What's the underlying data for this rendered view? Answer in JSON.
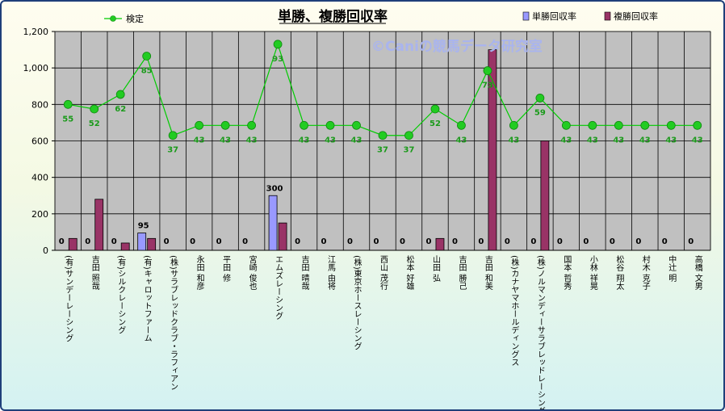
{
  "chart_data": {
    "type": "bar",
    "title": "単勝、複勝回収率",
    "watermark": "©Caniの競馬データ研究室",
    "ylim": [
      0,
      1200
    ],
    "yticks": [
      "0",
      "200",
      "400",
      "600",
      "800",
      "1,000",
      "1,200"
    ],
    "grid": true,
    "legend_placement": "top",
    "categories": [
      "(有)サンデーレーシング",
      "吉田 照哉",
      "(有)シルクレーシング",
      "(有)キャロットファーム",
      "(株)サラブレッドクラブ・ラフィアン",
      "永田 和彦",
      "平田 修",
      "宮崎 俊也",
      "エムズレーシング",
      "吉田 晴哉",
      "江馬 由将",
      "(株)東京ホースレーシング",
      "西山 茂行",
      "松本 好雄",
      "山田 弘",
      "吉田 勝己",
      "吉田 和美",
      "(株)カナヤマホールディングス",
      "(株)ノルマンディーサラブレッドレーシング",
      "国本 哲秀",
      "小林 祥晃",
      "松谷 翔太",
      "村木 克子",
      "中辻 明",
      "高橋 文男"
    ],
    "series": [
      {
        "name": "単勝回収率",
        "type": "bar",
        "color": "#9999ff",
        "values": [
          0,
          0,
          0,
          95,
          0,
          0,
          0,
          0,
          300,
          0,
          0,
          0,
          0,
          0,
          0,
          0,
          0,
          0,
          0,
          0,
          0,
          0,
          0,
          0,
          0
        ]
      },
      {
        "name": "複勝回収率",
        "type": "bar",
        "color": "#993366",
        "values": [
          65,
          280,
          40,
          65,
          0,
          0,
          0,
          0,
          150,
          0,
          0,
          0,
          0,
          0,
          65,
          0,
          1100,
          0,
          600,
          0,
          0,
          0,
          0,
          0,
          0
        ]
      },
      {
        "name": "検定",
        "type": "line",
        "color": "#00cc00",
        "values": [
          800,
          775,
          855,
          1065,
          630,
          685,
          685,
          685,
          1130,
          685,
          685,
          685,
          630,
          630,
          775,
          685,
          985,
          685,
          835,
          685,
          685,
          685,
          685,
          685,
          685
        ],
        "labels": [
          "55",
          "52",
          "62",
          "85",
          "37",
          "43",
          "43",
          "43",
          "93",
          "43",
          "43",
          "43",
          "37",
          "37",
          "52",
          "43",
          "73",
          "43",
          "59",
          "43",
          "43",
          "43",
          "43",
          "43",
          "43"
        ]
      }
    ]
  }
}
